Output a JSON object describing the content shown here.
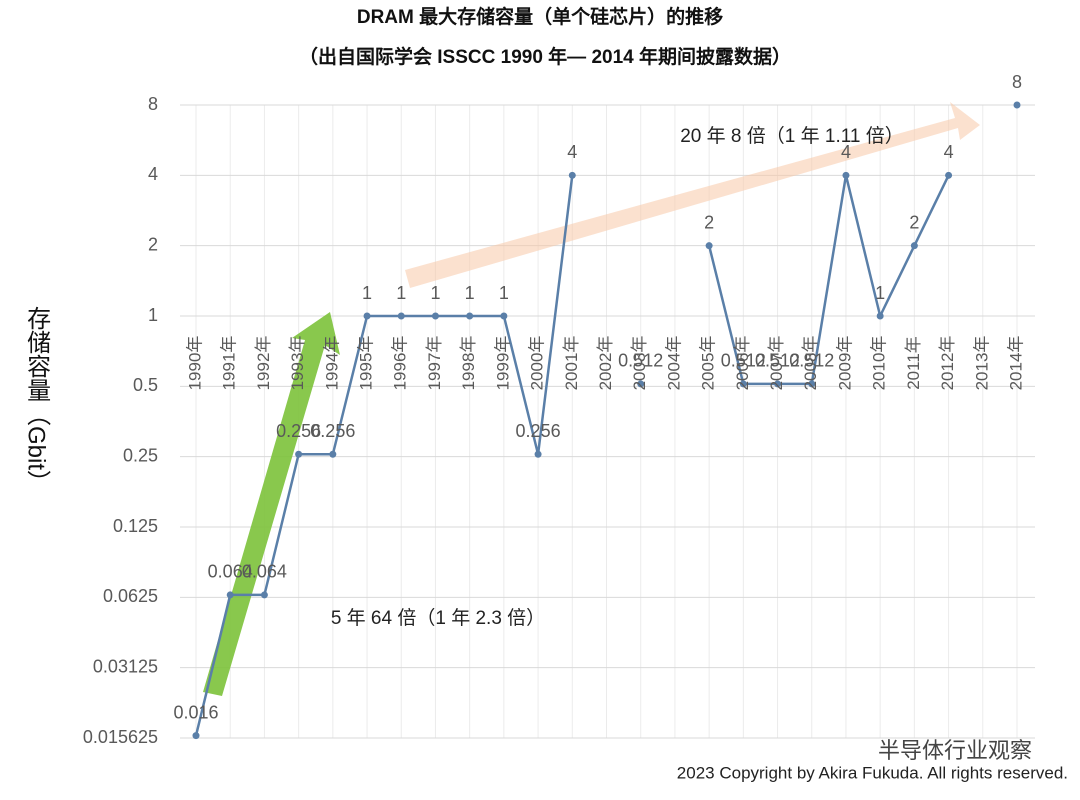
{
  "chart_data": {
    "type": "line",
    "title": "DRAM 最大存储容量（单个硅芯片）的推移",
    "subtitle": "（出自国际学会 ISSCC 1990 年— 2014 年期间披露数据）",
    "y_label": "存储容量（Gbit）",
    "categories": [
      "1990年",
      "1991年",
      "1992年",
      "1993年",
      "1994年",
      "1995年",
      "1996年",
      "1997年",
      "1998年",
      "1999年",
      "2000年",
      "2001年",
      "2002年",
      "2003年",
      "2004年",
      "2005年",
      "2006年",
      "2007年",
      "2008年",
      "2009年",
      "2010年",
      "2011年",
      "2012年",
      "2013年",
      "2014年"
    ],
    "values": [
      0.016,
      0.064,
      0.064,
      0.256,
      0.256,
      1,
      1,
      1,
      1,
      1,
      0.256,
      4,
      null,
      0.512,
      null,
      2,
      0.512,
      0.512,
      0.512,
      4,
      1,
      2,
      4,
      null,
      8
    ],
    "color": "#5a7fa8",
    "ylim": [
      0.015625,
      8
    ],
    "yticks": [
      0.015625,
      0.03125,
      0.0625,
      0.125,
      0.25,
      0.5,
      1,
      2,
      4,
      8
    ],
    "log_base": 2,
    "grid": true,
    "annotations": [
      "20 年 8 倍（1 年 1.11 倍）",
      "5 年 64 倍（1 年 2.3 倍）"
    ],
    "copyright": "2023 Copyright by Akira Fukuda. All rights reserved.",
    "watermark": "半导体行业观察"
  }
}
